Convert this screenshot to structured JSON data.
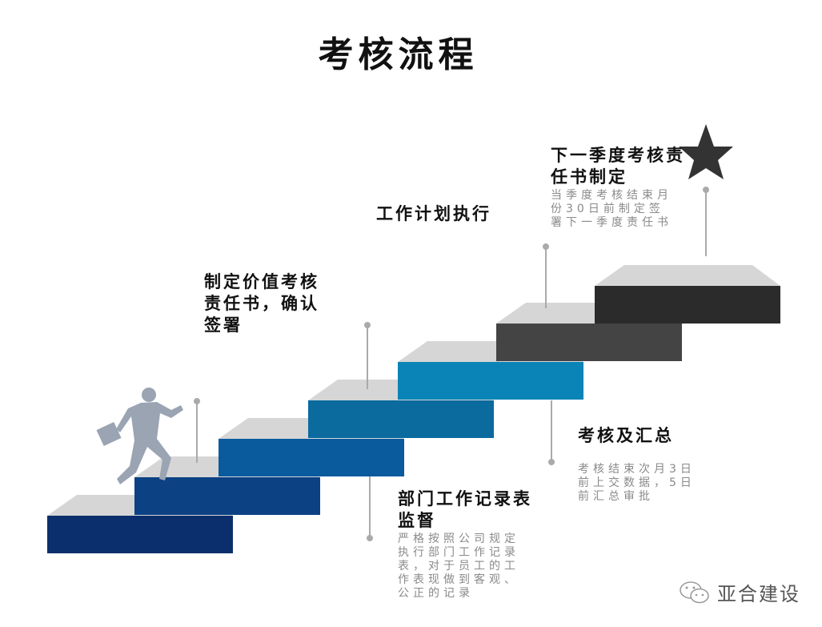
{
  "title": "考核流程",
  "steps": [
    {
      "heading": "制定价值考核责任书，确认签署",
      "desc": ""
    },
    {
      "heading": "部门工作记录表监督",
      "desc": "严格按照公司规定执行部门工作记录表，对于员工的工作表现做到客观、公正的记录"
    },
    {
      "heading": "工作计划执行",
      "desc": ""
    },
    {
      "heading": "考核及汇总",
      "desc": "考核结束次月3日前上交数据，5日前汇总审批"
    },
    {
      "heading": "下一季度考核责任书制定",
      "desc": "当季度考核结束月份30日前制定签署下一季度责任书"
    }
  ],
  "stair_colors": [
    "#0b2f6c",
    "#0c4183",
    "#0a5a9e",
    "#0b6b9f",
    "#0a84b6",
    "#444444",
    "#2b2b2b"
  ],
  "top_color": "#d6d6d6",
  "brand": "亚合建设",
  "icons": [
    "runner-figure",
    "star-icon",
    "wechat-icon"
  ]
}
